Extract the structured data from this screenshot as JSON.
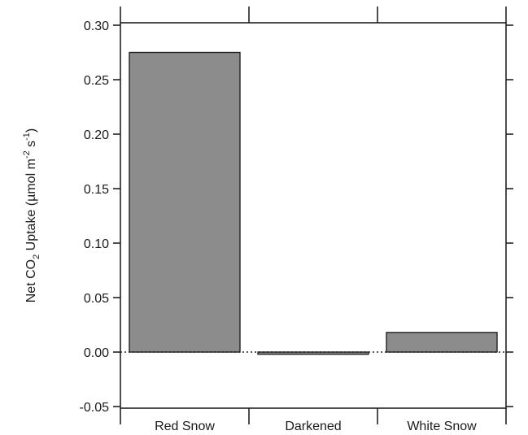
{
  "chart_data": {
    "type": "bar",
    "categories": [
      "Red Snow",
      "Darkened",
      "White Snow"
    ],
    "values": [
      0.275,
      -0.002,
      0.018
    ],
    "ylabel": {
      "prefix": "Net CO",
      "sub": "2",
      "middle": " Uptake (µmol m",
      "sup1": "-2",
      "middle2": " s",
      "sup2": "-1",
      "suffix": ")"
    },
    "ylim": [
      -0.055,
      0.3
    ],
    "yticks": [
      -0.05,
      0.0,
      0.05,
      0.1,
      0.15,
      0.2,
      0.25,
      0.3
    ],
    "ytick_labels": [
      "-0.05",
      "0.00",
      "0.05",
      "0.10",
      "0.15",
      "0.20",
      "0.25",
      "0.30"
    ],
    "zero_line": "dotted",
    "grid": false,
    "bar_color": "#8c8c8c",
    "frame_color": "#222222"
  }
}
